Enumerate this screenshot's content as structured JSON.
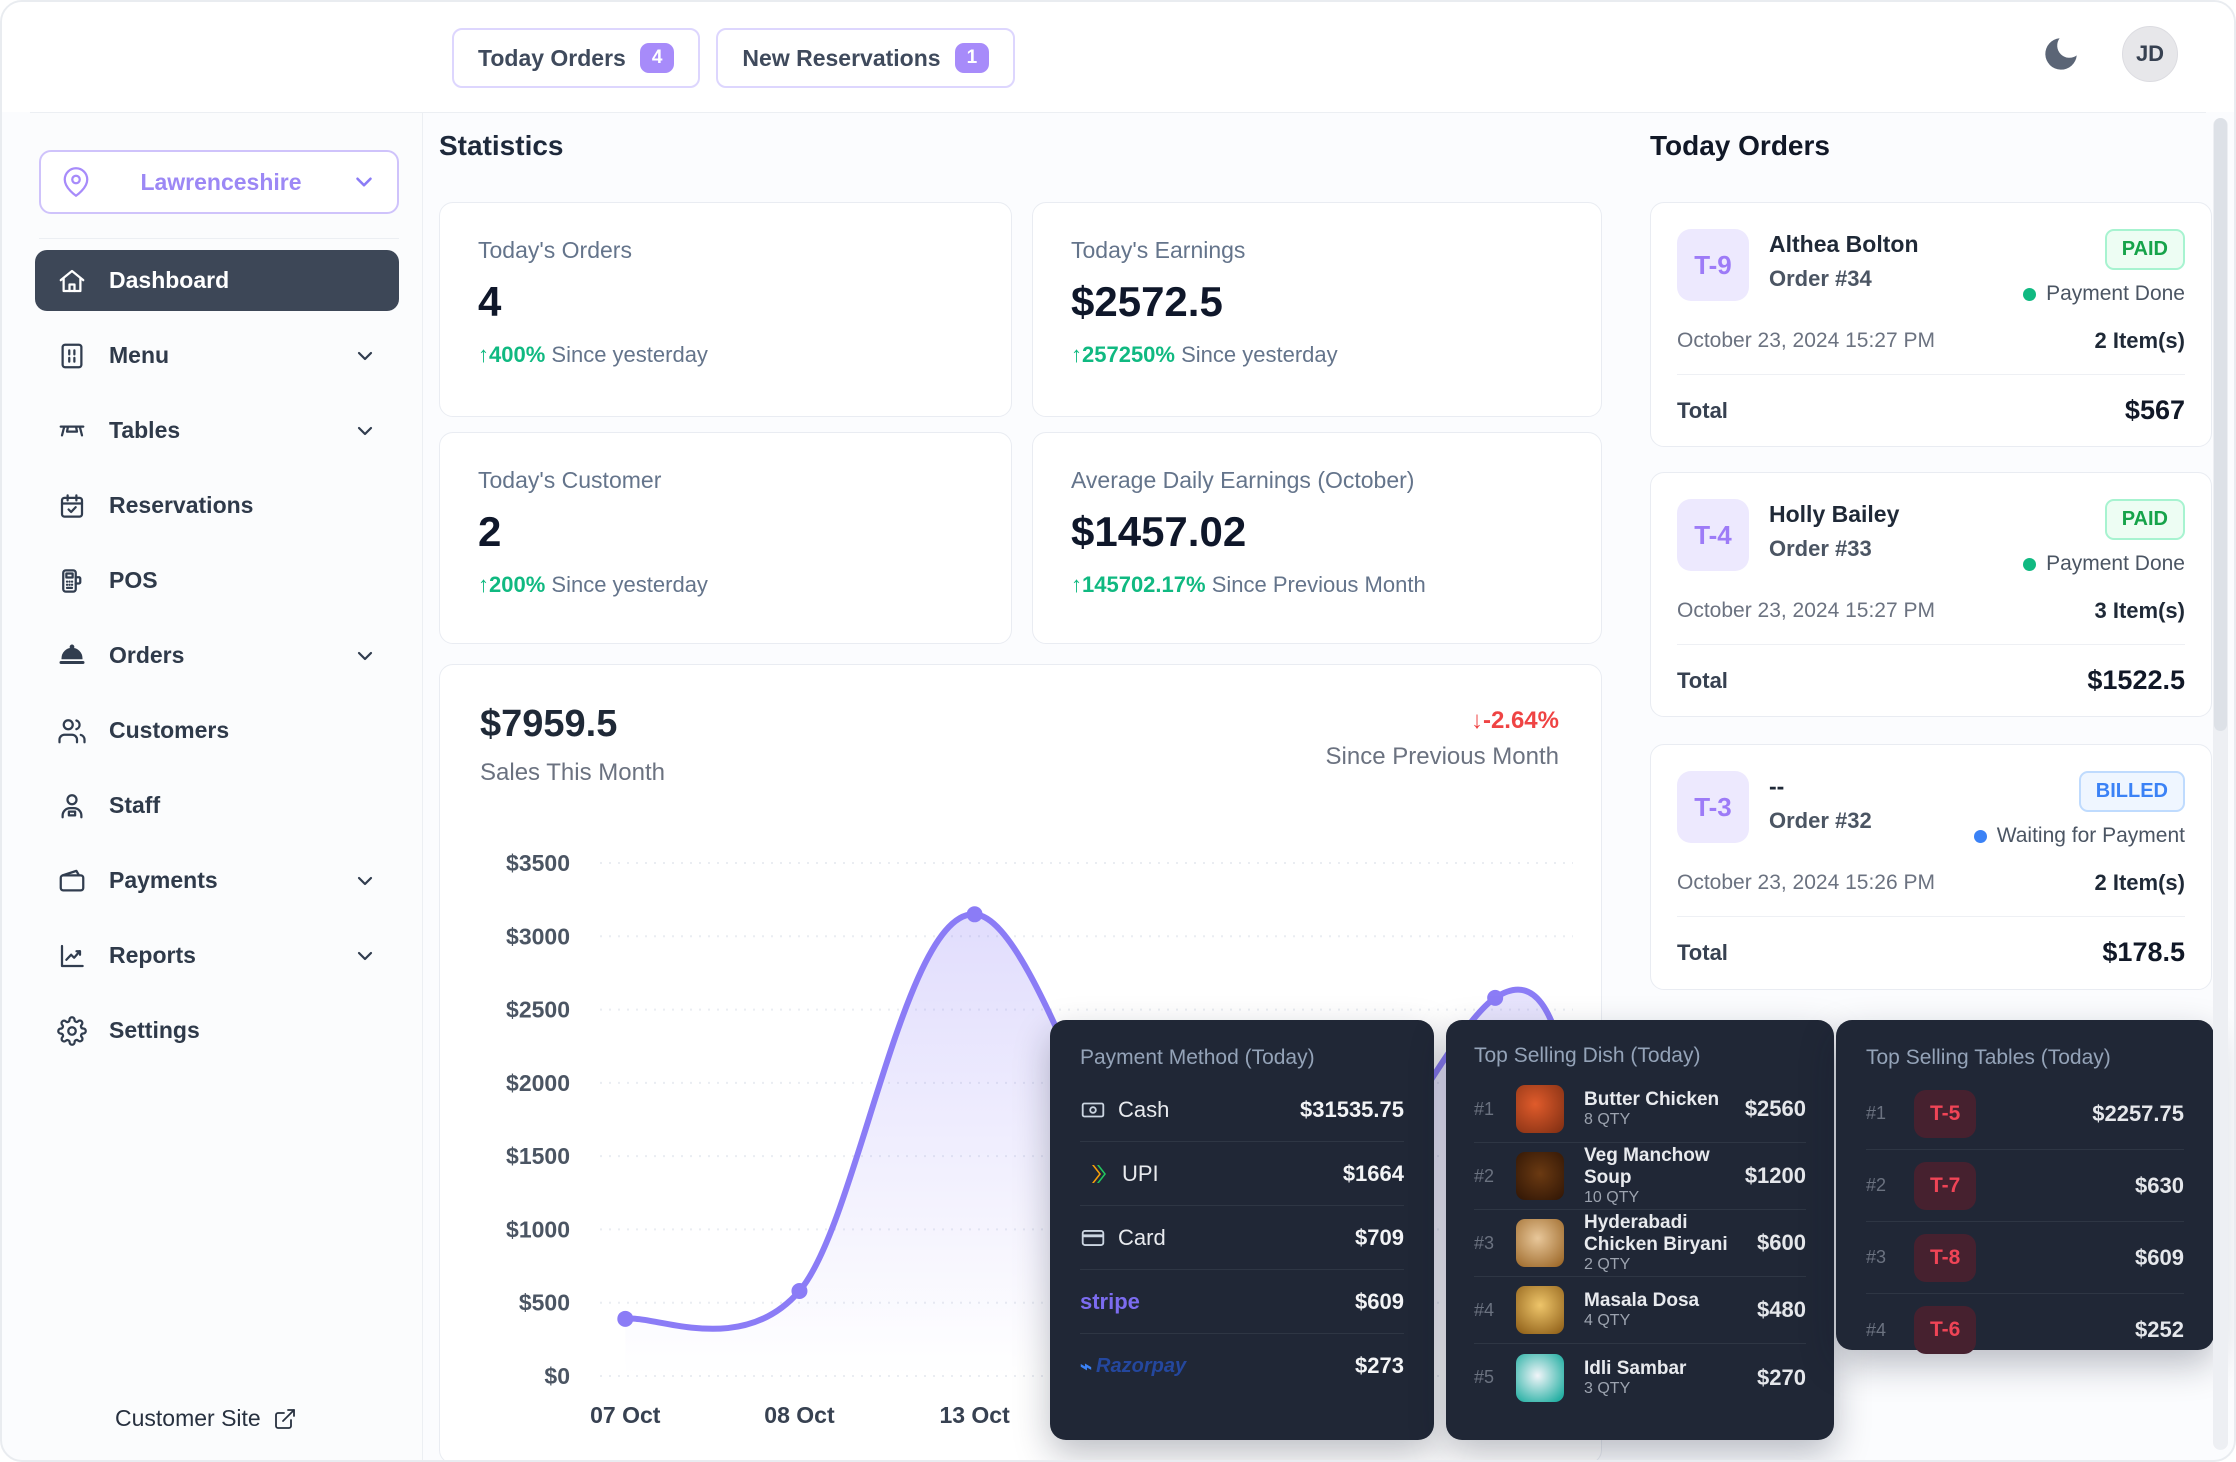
{
  "colors": {
    "accent_purple": "#8b7cf6",
    "badge_purple": "#a78bfa",
    "green": "#10b981",
    "blue": "#3b82f6",
    "red": "#ef4444",
    "dark_panel": "#202736"
  },
  "topbar": {
    "today_orders_label": "Today Orders",
    "today_orders_count": "4",
    "new_reservations_label": "New Reservations",
    "new_reservations_count": "1",
    "avatar_initials": "JD"
  },
  "sidebar": {
    "location": "Lawrenceshire",
    "items": [
      {
        "label": "Dashboard"
      },
      {
        "label": "Menu"
      },
      {
        "label": "Tables"
      },
      {
        "label": "Reservations"
      },
      {
        "label": "POS"
      },
      {
        "label": "Orders"
      },
      {
        "label": "Customers"
      },
      {
        "label": "Staff"
      },
      {
        "label": "Payments"
      },
      {
        "label": "Reports"
      },
      {
        "label": "Settings"
      }
    ],
    "customer_site_label": "Customer Site"
  },
  "stats": {
    "title": "Statistics",
    "cards": [
      {
        "label": "Today's Orders",
        "value": "4",
        "delta": "↑400%",
        "period": "Since yesterday"
      },
      {
        "label": "Today's Earnings",
        "value": "$2572.5",
        "delta": "↑257250%",
        "period": "Since yesterday"
      },
      {
        "label": "Today's Customer",
        "value": "2",
        "delta": "↑200%",
        "period": "Since yesterday"
      },
      {
        "label": "Average Daily Earnings (October)",
        "value": "$1457.02",
        "delta": "↑145702.17%",
        "period": "Since Previous Month"
      }
    ]
  },
  "chart_data": {
    "type": "area",
    "total": "$7959.5",
    "title": "Sales This Month",
    "delta": "↓-2.64%",
    "delta_period": "Since Previous Month",
    "ylim": [
      0,
      3500
    ],
    "y_ticks": [
      "$3500",
      "$3000",
      "$2500",
      "$2000",
      "$1500",
      "$1000",
      "$500",
      "$0"
    ],
    "x_ticks": [
      {
        "label": "07 Oct",
        "f": 0.026
      },
      {
        "label": "08 Oct",
        "f": 0.205
      },
      {
        "label": "13 Oct",
        "f": 0.385
      }
    ],
    "points": [
      {
        "f": 0.026,
        "value": 390,
        "dot": true
      },
      {
        "f": 0.205,
        "value": 580,
        "dot": true
      },
      {
        "f": 0.385,
        "value": 3150,
        "dot": true
      },
      {
        "f": 0.64,
        "value": 420,
        "dot": false
      },
      {
        "f": 0.92,
        "value": 2580,
        "dot": true
      },
      {
        "f": 1.0,
        "value": 2000,
        "dot": false
      }
    ],
    "line_color": "#8b7cf6",
    "legend_position": "none",
    "grid": "dotted-horizontal"
  },
  "today_orders": {
    "title": "Today Orders",
    "orders": [
      {
        "table": "T-9",
        "name": "Althea Bolton",
        "order": "Order #34",
        "status": "PAID",
        "status_type": "paid",
        "note": "Payment Done",
        "date": "October 23, 2024 15:27 PM",
        "items": "2 Item(s)",
        "total_label": "Total",
        "total": "$567"
      },
      {
        "table": "T-4",
        "name": "Holly Bailey",
        "order": "Order #33",
        "status": "PAID",
        "status_type": "paid",
        "note": "Payment Done",
        "date": "October 23, 2024 15:27 PM",
        "items": "3 Item(s)",
        "total_label": "Total",
        "total": "$1522.5"
      },
      {
        "table": "T-3",
        "name": "--",
        "order": "Order #32",
        "status": "BILLED",
        "status_type": "billed",
        "note": "Waiting for Payment",
        "date": "October 23, 2024 15:26 PM",
        "items": "2 Item(s)",
        "total_label": "Total",
        "total": "$178.5"
      }
    ]
  },
  "panels": {
    "payment": {
      "title": "Payment Method (Today)",
      "rows": [
        {
          "method": "Cash",
          "amount": "$31535.75"
        },
        {
          "method": "UPI",
          "amount": "$1664"
        },
        {
          "method": "Card",
          "amount": "$709"
        },
        {
          "method": "stripe",
          "amount": "$609"
        },
        {
          "method": "Razorpay",
          "amount": "$273"
        }
      ]
    },
    "dishes": {
      "title": "Top Selling Dish (Today)",
      "rows": [
        {
          "rank": "#1",
          "name": "Butter Chicken",
          "qty": "8 QTY",
          "amount": "$2560"
        },
        {
          "rank": "#2",
          "name": "Veg Manchow Soup",
          "qty": "10 QTY",
          "amount": "$1200"
        },
        {
          "rank": "#3",
          "name": "Hyderabadi Chicken Biryani",
          "qty": "2 QTY",
          "amount": "$600"
        },
        {
          "rank": "#4",
          "name": "Masala Dosa",
          "qty": "4 QTY",
          "amount": "$480"
        },
        {
          "rank": "#5",
          "name": "Idli Sambar",
          "qty": "3 QTY",
          "amount": "$270"
        }
      ]
    },
    "tables": {
      "title": "Top Selling Tables (Today)",
      "rows": [
        {
          "rank": "#1",
          "table": "T-5",
          "amount": "$2257.75"
        },
        {
          "rank": "#2",
          "table": "T-7",
          "amount": "$630"
        },
        {
          "rank": "#3",
          "table": "T-8",
          "amount": "$609"
        },
        {
          "rank": "#4",
          "table": "T-6",
          "amount": "$252"
        }
      ]
    }
  }
}
